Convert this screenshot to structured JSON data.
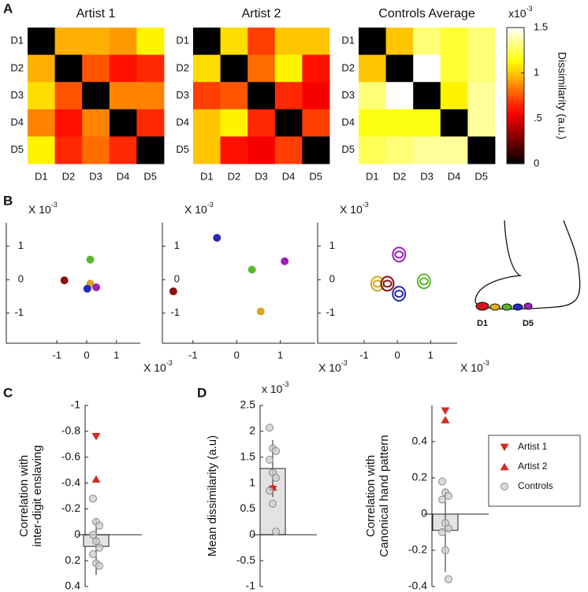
{
  "panel_labels": [
    "A",
    "B",
    "C",
    "D"
  ],
  "foot_labels": [
    "D1",
    "D5"
  ],
  "legend": [
    {
      "name": "Artist 1",
      "marker": "triangle-down",
      "color": "#d42a20"
    },
    {
      "name": "Artist 2",
      "marker": "triangle-up",
      "color": "#d42a20"
    },
    {
      "name": "Controls",
      "marker": "circle",
      "color": "#cfcfcf"
    }
  ],
  "chart_data": [
    {
      "type": "heatmap",
      "title": "Artist 1",
      "colormap": "hot",
      "clim": [
        0,
        1.5
      ],
      "categories": [
        "D1",
        "D2",
        "D3",
        "D4",
        "D5"
      ],
      "values": [
        [
          0,
          0.95,
          0.95,
          0.9,
          1.1
        ],
        [
          0.95,
          0,
          0.75,
          0.6,
          0.65
        ],
        [
          1.05,
          0.75,
          0,
          0.85,
          0.85
        ],
        [
          0.85,
          0.6,
          0.85,
          0,
          0.65
        ],
        [
          1.1,
          0.65,
          0.8,
          0.65,
          0
        ]
      ]
    },
    {
      "type": "heatmap",
      "title": "Artist 2",
      "colormap": "hot",
      "clim": [
        0,
        1.5
      ],
      "categories": [
        "D1",
        "D2",
        "D3",
        "D4",
        "D5"
      ],
      "values": [
        [
          0,
          1.05,
          0.7,
          1.0,
          1.0
        ],
        [
          1.05,
          0,
          0.8,
          1.1,
          0.6
        ],
        [
          0.7,
          0.75,
          0,
          0.65,
          0.55
        ],
        [
          1.0,
          1.1,
          0.65,
          0,
          0.7
        ],
        [
          1.0,
          0.6,
          0.55,
          0.7,
          0
        ]
      ]
    },
    {
      "type": "heatmap",
      "title": "Controls Average",
      "colormap": "hot",
      "clim": [
        0,
        1.5
      ],
      "cticks": [
        0,
        {
          "value": 0.5,
          "label": ".5"
        },
        1,
        1.5
      ],
      "clabel": "Dissimilarity (a.u.)",
      "multiplier": {
        "base": "x10",
        "exponent": "-3"
      },
      "categories": [
        "D1",
        "D2",
        "D3",
        "D4",
        "D5"
      ],
      "values": [
        [
          0,
          1.0,
          1.3,
          1.2,
          1.3
        ],
        [
          1.0,
          0,
          1.5,
          1.2,
          1.3
        ],
        [
          1.3,
          1.5,
          0,
          1.1,
          1.35
        ],
        [
          1.15,
          1.15,
          1.15,
          0,
          1.35
        ],
        [
          1.25,
          1.3,
          1.35,
          1.35,
          0
        ]
      ]
    },
    {
      "type": "scatter",
      "xlim": [
        -2.7,
        1.8
      ],
      "ylim": [
        -1.9,
        1.7
      ],
      "xticks": [
        -1,
        0,
        1
      ],
      "yticks": [
        -1,
        0,
        1
      ],
      "multiplier": {
        "base": "X 10",
        "exponent": "-3"
      },
      "marker": "dot",
      "x": [
        -0.75,
        0.12,
        0.12,
        0.02,
        0.32
      ],
      "values": [
        -0.02,
        0.6,
        -0.12,
        -0.27,
        -0.23
      ],
      "colors": [
        "#8b1010",
        "#5ab82d",
        "#d9a520",
        "#2a2ab8",
        "#a020c0"
      ]
    },
    {
      "type": "scatter",
      "xlim": [
        -1.7,
        1.8
      ],
      "ylim": [
        -1.9,
        1.7
      ],
      "xticks": [
        -1,
        0,
        1
      ],
      "yticks": [
        -1,
        0,
        1
      ],
      "multiplier": {
        "base": "X 10",
        "exponent": "-3"
      },
      "marker": "dot",
      "x": [
        -0.45,
        1.1,
        0.35,
        -1.45,
        0.55
      ],
      "values": [
        1.25,
        0.55,
        0.3,
        -0.35,
        -0.95
      ],
      "colors": [
        "#2a2ab8",
        "#a020c0",
        "#5ab82d",
        "#8b1010",
        "#d9a520"
      ]
    },
    {
      "type": "scatter",
      "xlim": [
        -2.4,
        1.8
      ],
      "ylim": [
        -1.9,
        1.7
      ],
      "xticks": [
        -1,
        0,
        1
      ],
      "yticks": [
        -1,
        0,
        1
      ],
      "multiplier": {
        "base": "X 10",
        "exponent": "-3"
      },
      "marker": "ring",
      "x": [
        0.05,
        -0.6,
        -0.3,
        0.05,
        0.8
      ],
      "values": [
        0.75,
        -0.12,
        -0.12,
        -0.42,
        -0.05
      ],
      "colors": [
        "#a020c0",
        "#d9a520",
        "#8b1010",
        "#2a2ab8",
        "#5ab82d"
      ]
    },
    {
      "type": "bar",
      "ylabel": [
        "Correlation with",
        "inter-digit enslaving"
      ],
      "ylim": [
        -1,
        0.4
      ],
      "y_reversed": true,
      "yticks": [
        -1,
        -0.8,
        -0.6,
        -0.4,
        -0.2,
        0,
        0.2,
        0.4
      ],
      "values": [
        0.09
      ],
      "errors": [
        0.22
      ],
      "color": "#e3e3e3",
      "series": [
        {
          "marker": "triangle-down",
          "color": "#d42a20",
          "values": [
            -0.76
          ]
        },
        {
          "marker": "triangle-up",
          "color": "#d42a20",
          "values": [
            -0.43
          ]
        },
        {
          "marker": "circle",
          "color": "#cfcfcf",
          "values": [
            -0.28,
            -0.1,
            -0.07,
            0.0,
            0.05,
            0.1,
            0.15,
            0.22,
            0.24
          ]
        }
      ]
    },
    {
      "type": "bar",
      "ylabel": [
        "Mean dissimilarity (a.u)"
      ],
      "ylim": [
        -1,
        2.5
      ],
      "y_reversed": false,
      "multiplier": {
        "base": "x 10",
        "exponent": "-3"
      },
      "yticks": [
        -1,
        -0.5,
        0,
        0.5,
        1,
        1.5,
        2,
        2.5
      ],
      "values": [
        1.28
      ],
      "errors": [
        0.55
      ],
      "color": "#e3e3e3",
      "series": [
        {
          "marker": "triangle-down",
          "color": "#d42a20",
          "values": [
            0.88
          ]
        },
        {
          "marker": "triangle-up",
          "color": "#d42a20",
          "values": [
            0.92
          ]
        },
        {
          "marker": "circle",
          "color": "#cfcfcf",
          "values": [
            2.07,
            1.67,
            1.62,
            1.45,
            1.2,
            1.1,
            0.85,
            0.6,
            0.06
          ]
        }
      ]
    },
    {
      "type": "bar",
      "ylabel": [
        "Correlation with",
        "Canonical hand pattern"
      ],
      "ylim": [
        -0.4,
        0.6
      ],
      "y_reversed": false,
      "yticks": [
        -0.4,
        -0.2,
        0,
        0.2,
        0.4
      ],
      "values": [
        -0.09
      ],
      "errors": [
        0.23
      ],
      "color": "#e3e3e3",
      "series": [
        {
          "marker": "triangle-down",
          "color": "#d42a20",
          "values": [
            0.57
          ]
        },
        {
          "marker": "triangle-up",
          "color": "#d42a20",
          "values": [
            0.52
          ]
        },
        {
          "marker": "circle",
          "color": "#cfcfcf",
          "values": [
            0.18,
            0.12,
            0.1,
            0.08,
            -0.05,
            -0.08,
            -0.1,
            -0.2,
            -0.36
          ]
        }
      ]
    }
  ]
}
